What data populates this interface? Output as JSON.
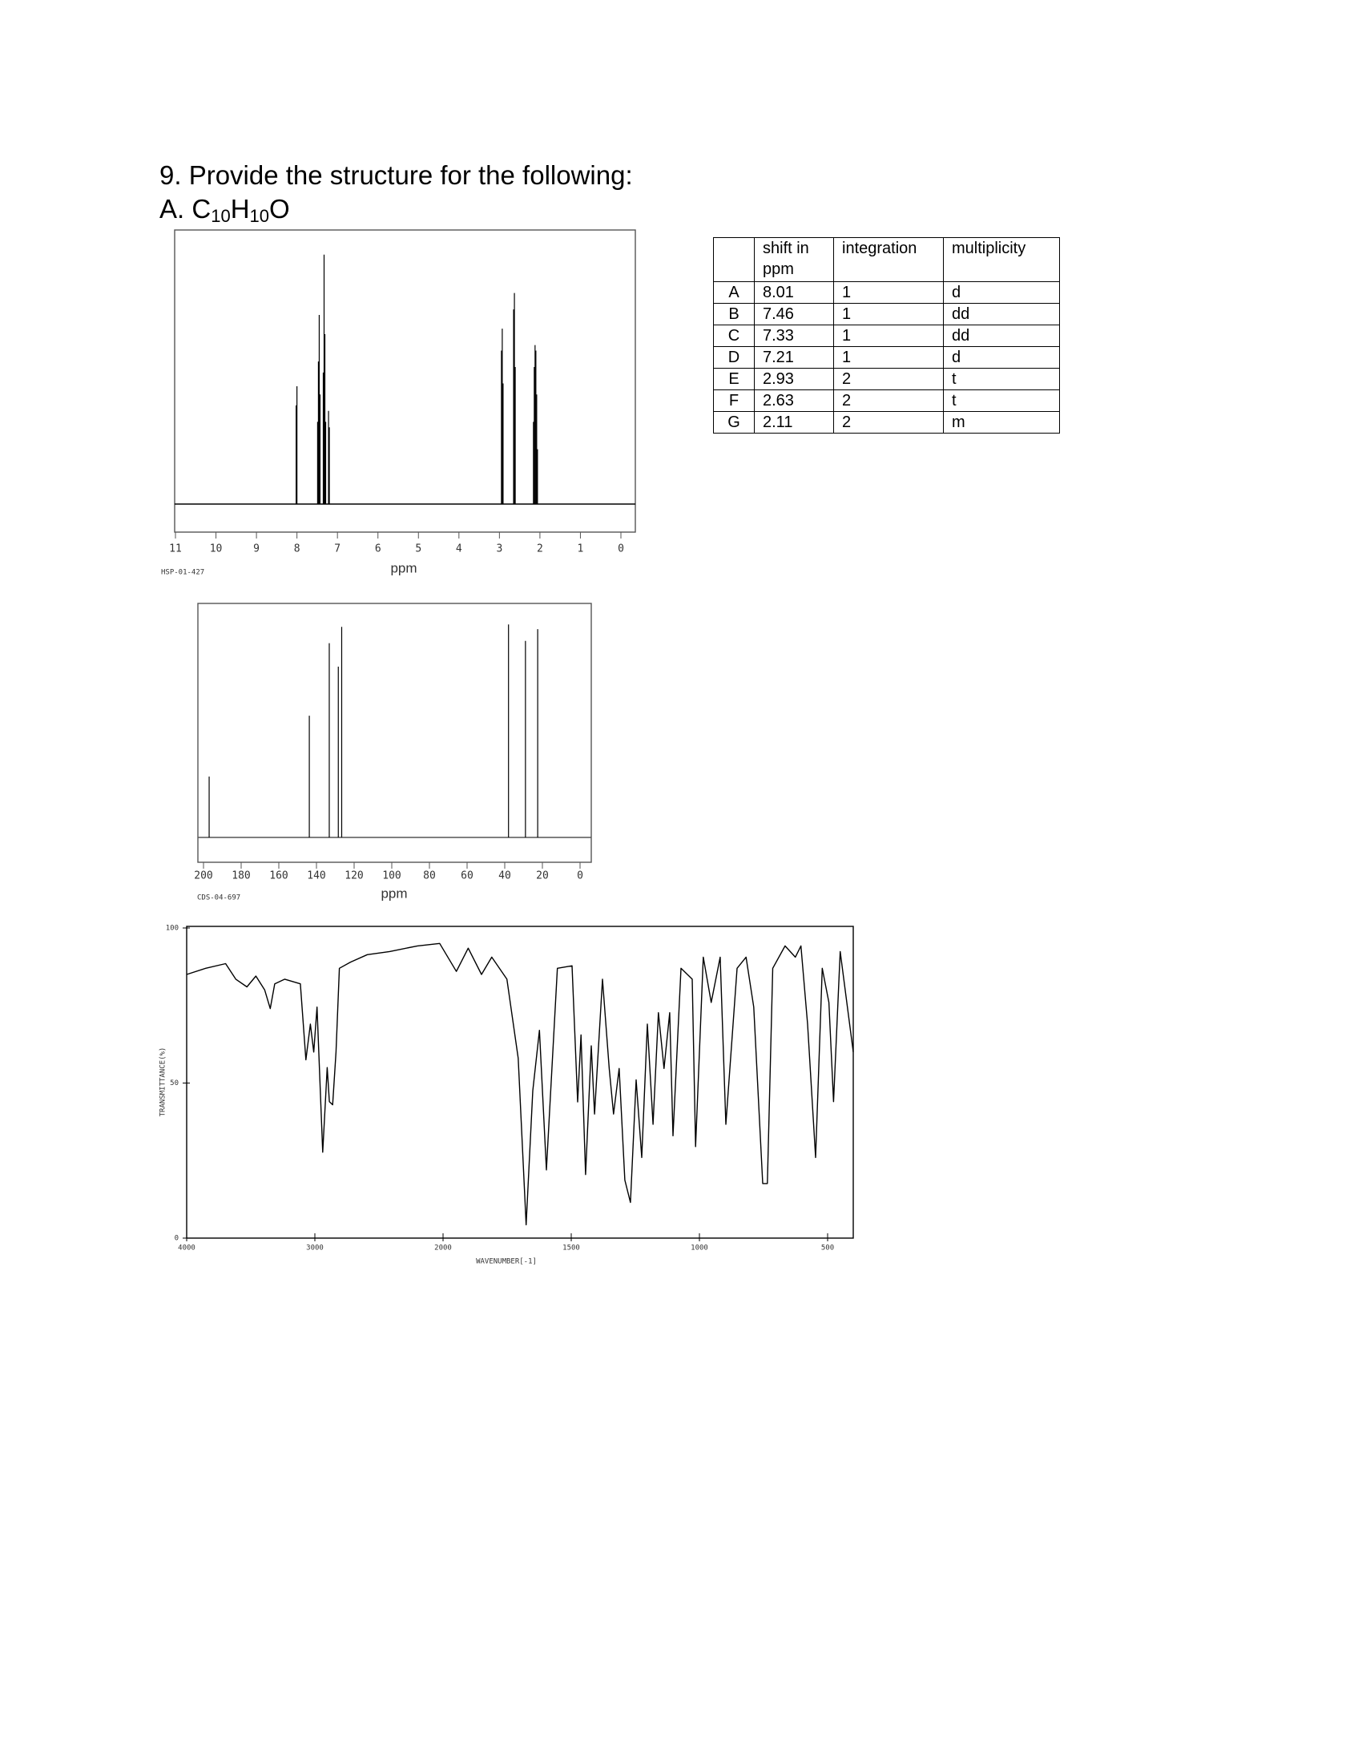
{
  "question": {
    "title": "9. Provide the structure for the following:",
    "part": "A.",
    "formula": [
      "C",
      "10",
      "H",
      "10",
      "O"
    ]
  },
  "table": {
    "header": [
      "shift in ppm",
      "integration",
      "multiplicity"
    ],
    "rows": [
      [
        "A",
        8.01,
        1,
        "d"
      ],
      [
        "B",
        7.46,
        1,
        "dd"
      ],
      [
        "C",
        7.33,
        1,
        "dd"
      ],
      [
        "D",
        7.21,
        1,
        "d"
      ],
      [
        "E",
        2.93,
        2,
        "t"
      ],
      [
        "F",
        2.63,
        2,
        "t"
      ],
      [
        "G",
        2.11,
        2,
        "m"
      ]
    ]
  },
  "h_nmr": {
    "code": "HSP-01-427",
    "xlabel": "ppm",
    "xlim": [
      11,
      0
    ],
    "xticks": [
      11,
      10,
      9,
      8,
      7,
      6,
      5,
      4,
      3,
      2,
      1,
      0
    ],
    "x": [
      8.02,
      8.0,
      7.49,
      7.47,
      7.45,
      7.43,
      7.35,
      7.33,
      7.31,
      7.29,
      7.22,
      7.2,
      2.95,
      2.93,
      2.91,
      2.65,
      2.63,
      2.61,
      2.16,
      2.14,
      2.12,
      2.1,
      2.08,
      2.06
    ],
    "values": [
      36,
      43,
      30,
      52,
      69,
      40,
      48,
      91,
      62,
      30,
      34,
      28,
      56,
      64,
      44,
      71,
      77,
      50,
      30,
      50,
      58,
      56,
      40,
      20
    ]
  },
  "c_nmr": {
    "code": "CDS-04-697",
    "xlabel": "ppm",
    "xlim": [
      200,
      0
    ],
    "xticks": [
      200,
      180,
      160,
      140,
      120,
      100,
      80,
      60,
      40,
      20,
      0
    ],
    "x": [
      197,
      143.8,
      133.2,
      128.4,
      126.6,
      38,
      29,
      22.5
    ],
    "values": [
      26,
      52,
      83,
      73,
      90,
      91,
      84,
      89
    ]
  },
  "ir": {
    "xlabel": "WAVENUMBER[-1]",
    "ylabel": "TRANSMITTANCE(%)",
    "xlim": [
      4000,
      400
    ],
    "xticks": [
      4000,
      3000,
      2000,
      1500,
      1000,
      500
    ],
    "ylim": [
      0,
      100
    ],
    "yticks": [
      0,
      50,
      100
    ],
    "x": [
      4000,
      3852,
      3696,
      3617,
      3530,
      3460,
      3391,
      3348,
      3313,
      3235,
      3113,
      3070,
      3035,
      3009,
      2983,
      2939,
      2904,
      2887,
      2861,
      2835,
      2809,
      2722,
      2591,
      2417,
      2200,
      2026,
      1948,
      1902,
      1850,
      1810,
      1751,
      1707,
      1676,
      1650,
      1624,
      1597,
      1554,
      1497,
      1475,
      1462,
      1444,
      1422,
      1409,
      1378,
      1352,
      1335,
      1313,
      1291,
      1269,
      1247,
      1225,
      1203,
      1181,
      1160,
      1138,
      1116,
      1103,
      1072,
      1028,
      1015,
      985,
      954,
      919,
      897,
      853,
      818,
      788,
      753,
      735,
      714,
      666,
      626,
      604,
      578,
      547,
      521,
      495,
      477,
      451,
      400
    ],
    "values": [
      85,
      87,
      88.5,
      83.5,
      81,
      84.5,
      80,
      74,
      82,
      83.5,
      82,
      57.5,
      69,
      60,
      74.5,
      27.7,
      55,
      44,
      43,
      60,
      87,
      89,
      91.4,
      92.4,
      94.2,
      95,
      86,
      93.5,
      85,
      90.6,
      83.5,
      58,
      4.3,
      47.5,
      67,
      22,
      87,
      87.8,
      43.9,
      65.5,
      20.5,
      62,
      40,
      83.5,
      54.7,
      40,
      54.7,
      18.7,
      11.5,
      51,
      26,
      69,
      36.7,
      72.7,
      54.7,
      72.7,
      33,
      87,
      83.5,
      29.5,
      90.6,
      76,
      90.6,
      36.7,
      87,
      90.6,
      74.5,
      17.6,
      17.6,
      87,
      94.2,
      90.6,
      94.2,
      69,
      26,
      87,
      76,
      44,
      92.4,
      60
    ]
  }
}
